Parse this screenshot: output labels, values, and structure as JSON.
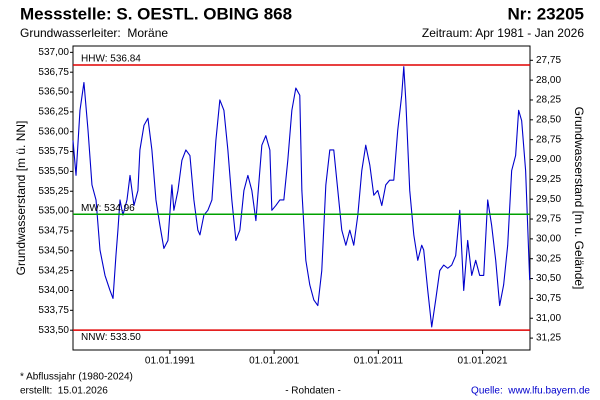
{
  "chart_data": {
    "type": "line",
    "title": "Messstelle: S. OESTL. OBING 868",
    "number": "Nr: 23205",
    "subtitle": "Grundwasserleiter:  Moräne",
    "period": "Zeitraum: Apr 1981 - Jan 2026",
    "ylabel": "Grundwasserstand [m ü. NN]",
    "y2label": "Grundwasserstand [m u. Gelände]",
    "footnote": "* Abflussjahr (1980-2024)",
    "created": "erstellt:  15.01.2026",
    "note": "- Rohdaten -",
    "source": "Quelle:  www.lfu.bayern.de",
    "color": "#0000cc",
    "grid": false,
    "xlim": [
      1981.7,
      2025.55
    ],
    "xticks": [
      {
        "value": 1991,
        "label": "01.01.1991"
      },
      {
        "value": 2001,
        "label": "01.01.2001"
      },
      {
        "value": 2011,
        "label": "01.01.2011"
      },
      {
        "value": 2021,
        "label": "01.01.2021"
      }
    ],
    "ylim": [
      533.25,
      537.08
    ],
    "yticks": [
      {
        "value": 533.5,
        "label": "533,50"
      },
      {
        "value": 533.75,
        "label": "533,75"
      },
      {
        "value": 534,
        "label": "534,00"
      },
      {
        "value": 534.25,
        "label": "534,25"
      },
      {
        "value": 534.5,
        "label": "534,50"
      },
      {
        "value": 534.75,
        "label": "534,75"
      },
      {
        "value": 535,
        "label": "535,00"
      },
      {
        "value": 535.25,
        "label": "535,25"
      },
      {
        "value": 535.5,
        "label": "535,50"
      },
      {
        "value": 535.75,
        "label": "535,75"
      },
      {
        "value": 536,
        "label": "536,00"
      },
      {
        "value": 536.25,
        "label": "536,25"
      },
      {
        "value": 536.5,
        "label": "536,50"
      },
      {
        "value": 536.75,
        "label": "536,75"
      },
      {
        "value": 537,
        "label": "537,00"
      }
    ],
    "y2lim": [
      31.4,
      27.57
    ],
    "y2ticks": [
      {
        "value": 27.75,
        "label": "27,75"
      },
      {
        "value": 28,
        "label": "28,00"
      },
      {
        "value": 28.25,
        "label": "28,25"
      },
      {
        "value": 28.5,
        "label": "28,50"
      },
      {
        "value": 28.75,
        "label": "28,75"
      },
      {
        "value": 29,
        "label": "29,00"
      },
      {
        "value": 29.25,
        "label": "29,25"
      },
      {
        "value": 29.5,
        "label": "29,50"
      },
      {
        "value": 29.75,
        "label": "29,75"
      },
      {
        "value": 30,
        "label": "30,00"
      },
      {
        "value": 30.25,
        "label": "30,25"
      },
      {
        "value": 30.5,
        "label": "30,50"
      },
      {
        "value": 30.75,
        "label": "30,75"
      },
      {
        "value": 31,
        "label": "31,00"
      },
      {
        "value": 31.25,
        "label": "31,25"
      }
    ],
    "reference_lines": [
      {
        "label": "HHW: 536.84",
        "value": 536.84,
        "color": "#e00000"
      },
      {
        "label": "MW: 534.96",
        "value": 534.96,
        "color": "#00a000"
      },
      {
        "label": "NNW: 533.50",
        "value": 533.5,
        "color": "#e00000"
      }
    ],
    "x": [
      1981.7,
      1981.99,
      1982.37,
      1982.75,
      1983.14,
      1983.52,
      1983.91,
      1984.29,
      1984.77,
      1985.25,
      1985.54,
      1985.82,
      1986.01,
      1986.21,
      1986.49,
      1986.88,
      1987.17,
      1987.55,
      1987.93,
      1988.12,
      1988.51,
      1988.89,
      1989.27,
      1989.66,
      1990.04,
      1990.42,
      1990.81,
      1991.19,
      1991.38,
      1991.77,
      1992.15,
      1992.53,
      1992.92,
      1993.3,
      1993.68,
      1993.88,
      1994.26,
      1994.64,
      1995.03,
      1995.41,
      1995.79,
      1996.18,
      1996.56,
      1996.94,
      1997.33,
      1997.71,
      1998.1,
      1998.48,
      1998.86,
      1999.25,
      1999.44,
      1999.82,
      2000.2,
      2000.59,
      2000.78,
      2001.16,
      2001.55,
      2001.93,
      2002.31,
      2002.7,
      2003.08,
      2003.46,
      2003.66,
      2004.04,
      2004.42,
      2004.81,
      2005.19,
      2005.57,
      2005.96,
      2006.34,
      2006.72,
      2007.11,
      2007.49,
      2007.88,
      2008.26,
      2008.64,
      2009.03,
      2009.41,
      2009.79,
      2010.18,
      2010.56,
      2010.94,
      2011.33,
      2011.71,
      2012.09,
      2012.48,
      2012.86,
      2013.24,
      2013.44,
      2013.63,
      2014.01,
      2014.4,
      2014.78,
      2015.16,
      2015.35,
      2015.74,
      2016.12,
      2016.5,
      2016.89,
      2017.27,
      2017.66,
      2018.04,
      2018.42,
      2018.81,
      2019.19,
      2019.57,
      2019.96,
      2020.34,
      2020.72,
      2021.11,
      2021.49,
      2021.87,
      2022.26,
      2022.64,
      2023.02,
      2023.41,
      2023.79,
      2024.17,
      2024.46,
      2024.75,
      2025.13,
      2025.52
    ],
    "values": [
      535.89,
      535.45,
      536.27,
      536.62,
      536.02,
      535.33,
      535.14,
      534.51,
      534.19,
      534.0,
      533.9,
      534.44,
      534.76,
      535.14,
      534.95,
      535.14,
      535.45,
      535.07,
      535.26,
      535.77,
      536.08,
      536.17,
      535.77,
      535.14,
      534.82,
      534.53,
      534.63,
      535.33,
      535.01,
      535.26,
      535.64,
      535.77,
      535.7,
      535.14,
      534.76,
      534.7,
      534.95,
      535.01,
      535.14,
      535.89,
      536.4,
      536.27,
      535.77,
      535.14,
      534.63,
      534.76,
      535.26,
      535.45,
      535.26,
      534.88,
      535.2,
      535.83,
      535.95,
      535.77,
      535.01,
      535.07,
      535.14,
      535.14,
      535.64,
      536.27,
      536.55,
      536.46,
      535.26,
      534.38,
      534.07,
      533.88,
      533.81,
      534.25,
      535.33,
      535.77,
      535.77,
      535.26,
      534.76,
      534.57,
      534.76,
      534.57,
      534.95,
      535.51,
      535.83,
      535.58,
      535.2,
      535.26,
      535.07,
      535.33,
      535.39,
      535.39,
      536.02,
      536.46,
      536.82,
      536.4,
      535.26,
      534.7,
      534.38,
      534.57,
      534.51,
      534.0,
      533.54,
      533.88,
      534.25,
      534.32,
      534.28,
      534.32,
      534.44,
      535.01,
      534.0,
      534.63,
      534.19,
      534.38,
      534.19,
      534.19,
      535.14,
      534.82,
      534.38,
      533.81,
      534.07,
      534.57,
      535.51,
      535.7,
      536.27,
      536.14,
      535.51,
      534.13
    ]
  }
}
